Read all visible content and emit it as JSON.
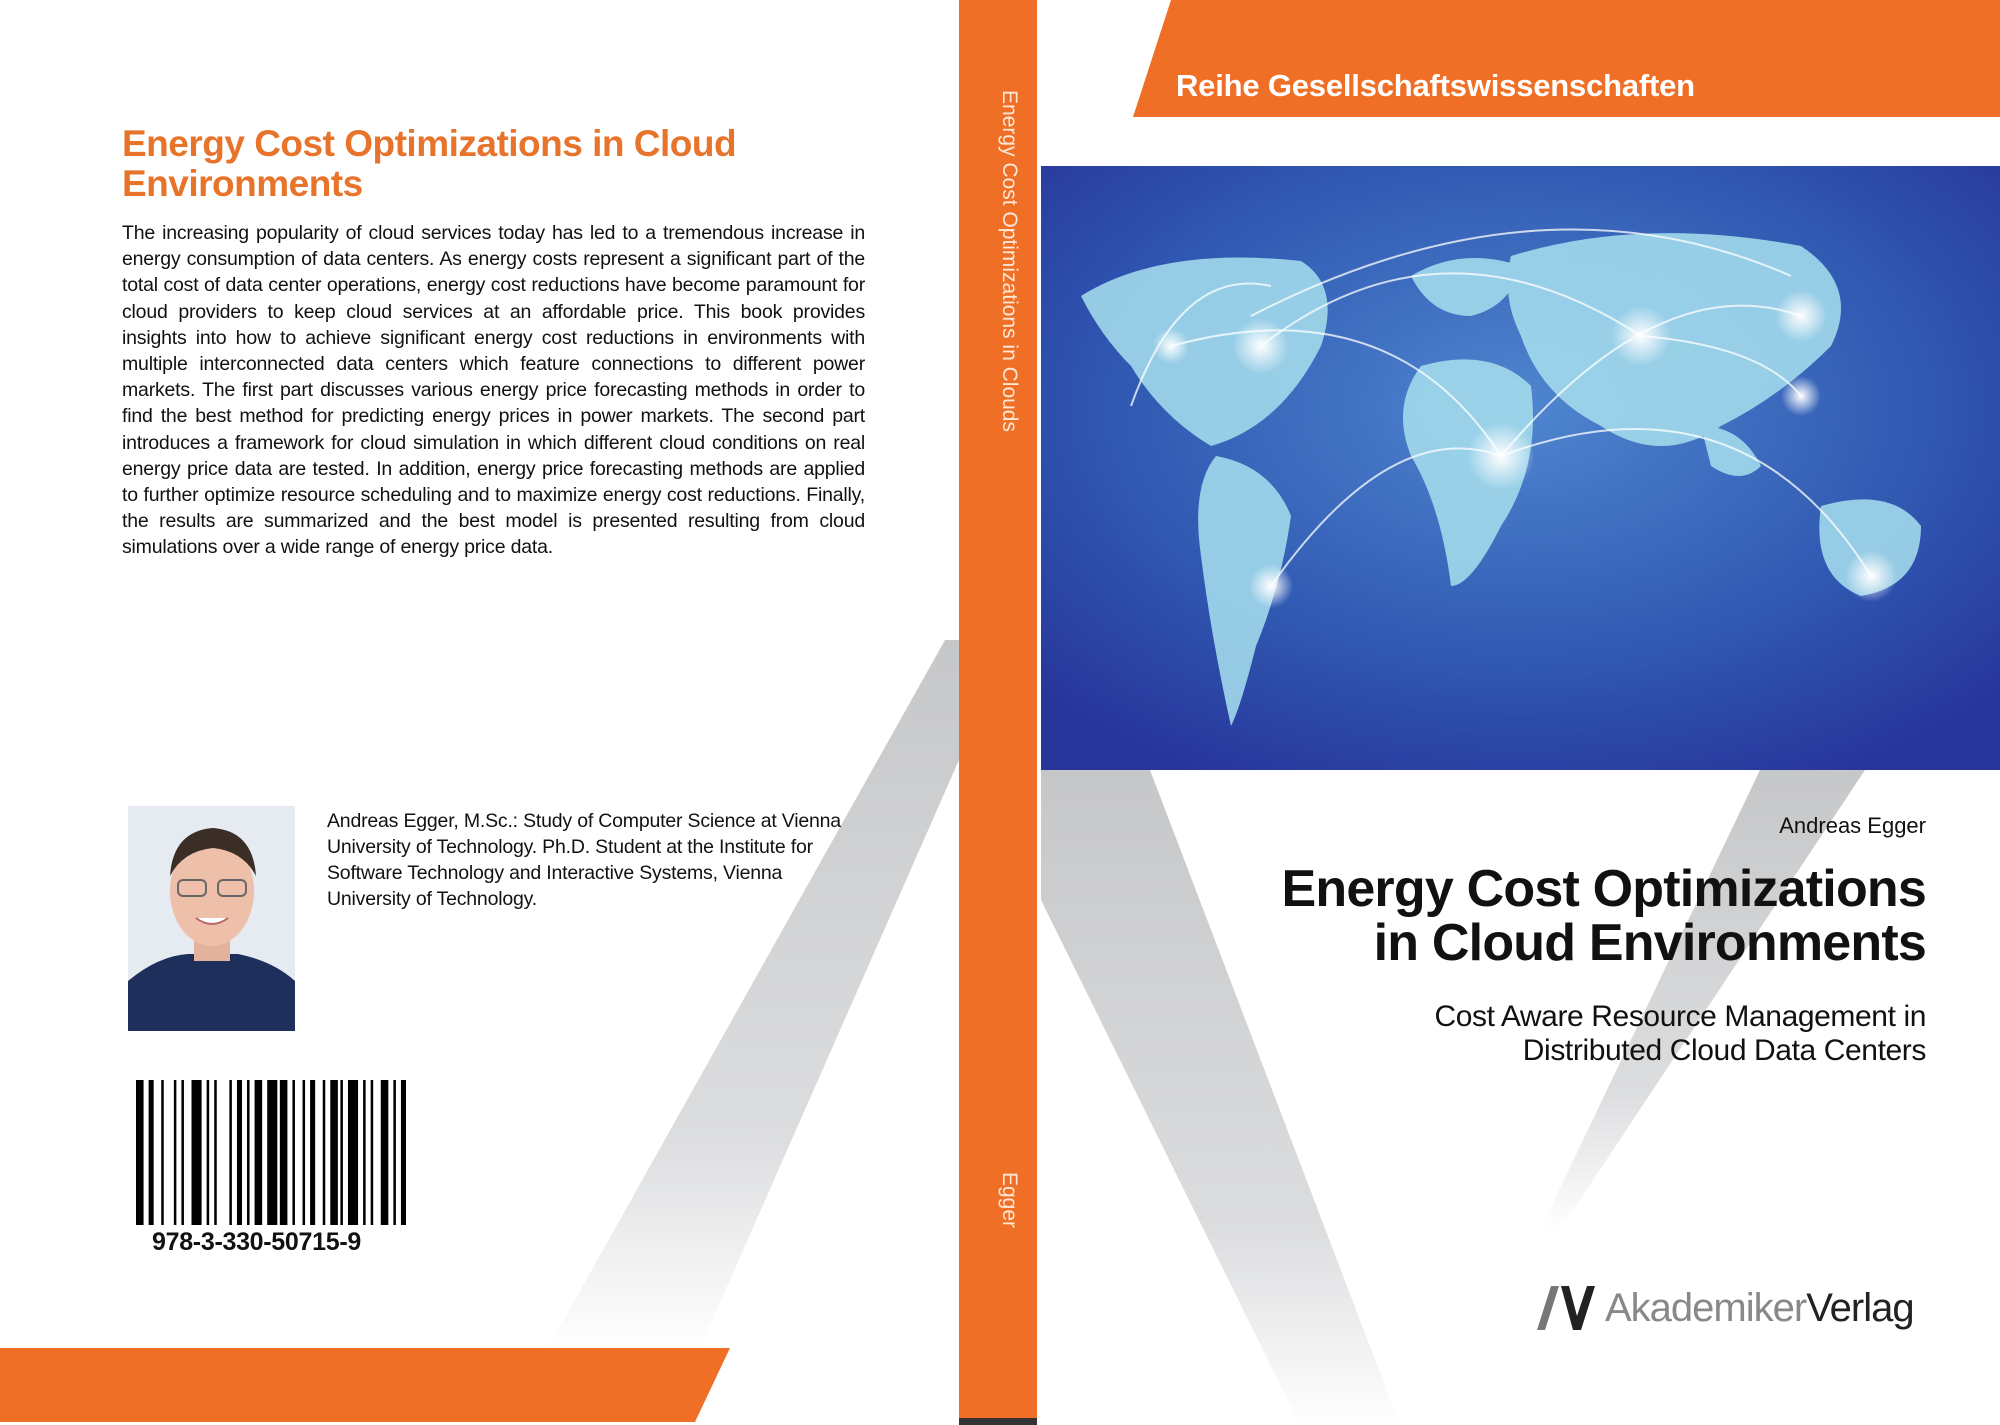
{
  "back_cover": {
    "title": "Energy Cost Optimizations in Cloud Environments",
    "description": "The increasing popularity of cloud services today has led to a tremendous increase in energy consumption of data centers. As energy costs represent a significant part of the total cost of data center operations, energy cost reductions have become paramount for cloud providers to keep cloud services at an affordable price. This book provides insights into how to achieve significant energy cost reductions in environments with multiple interconnected data centers which feature connections to different power markets. The first part discusses various energy price forecasting methods in order to find the best method for predicting energy prices in power markets. The second part introduces a framework for cloud simulation in which different cloud conditions on real energy price data are tested. In addition, energy price forecasting methods are applied to further optimize resource scheduling and to maximize energy cost reductions. Finally, the results are summarized and the best model is presented resulting from cloud simulations over a wide range of energy price data.",
    "author_bio": "Andreas Egger, M.Sc.: Study of Computer Science at Vienna University of Technology. Ph.D. Student at the Institute for Software Technology and Interactive Systems, Vienna University of Technology.",
    "isbn": "978-3-330-50715-9"
  },
  "spine": {
    "title": "Energy Cost Optimizations in Clouds",
    "author": "Egger"
  },
  "front_cover": {
    "series": "Reihe Gesellschaftswissenschaften",
    "author": "Andreas Egger",
    "title_line1": "Energy Cost Optimizations",
    "title_line2": "in Cloud Environments",
    "subtitle_line1": "Cost Aware Resource Management in",
    "subtitle_line2": "Distributed Cloud Data Centers",
    "publisher_logo": {
      "part1": "Akademiker",
      "part2": "Verlag"
    }
  },
  "colors": {
    "accent": "#ef6f27",
    "map_blue": "#2f4ea8",
    "grey": "#c9cacc"
  }
}
